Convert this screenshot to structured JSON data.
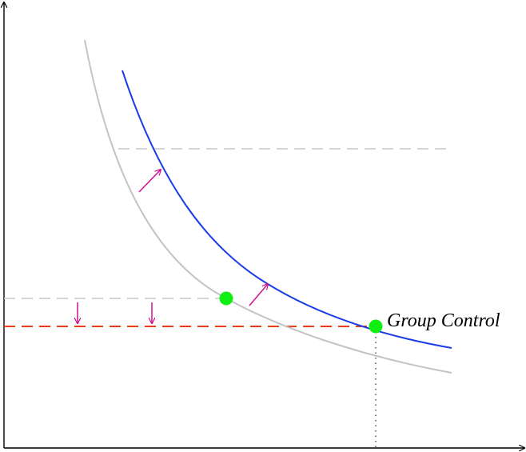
{
  "labels": {
    "point": "Group Control"
  }
}
